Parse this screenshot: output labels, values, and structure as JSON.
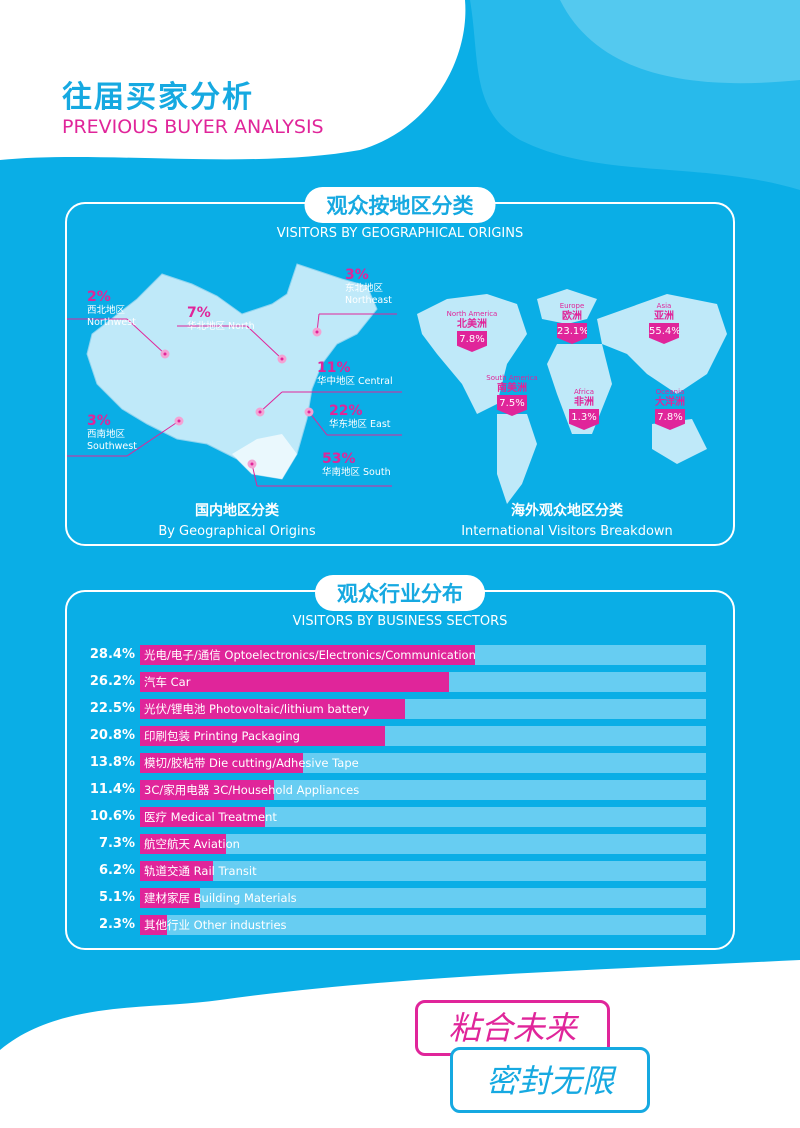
{
  "header": {
    "title_cn": "往届买家分析",
    "title_en": "PREVIOUS BUYER ANALYSIS"
  },
  "geo": {
    "heading": "观众按地区分类",
    "subheading": "VISITORS BY GEOGRAPHICAL ORIGINS",
    "domestic": {
      "caption_cn": "国内地区分类",
      "caption_en": "By Geographical Origins",
      "regions": [
        {
          "pct": "2%",
          "cn": "西北地区",
          "en": "Northwest"
        },
        {
          "pct": "7%",
          "cn": "华北地区 North",
          "en": ""
        },
        {
          "pct": "3%",
          "cn": "东北地区",
          "en": "Northeast"
        },
        {
          "pct": "11%",
          "cn": "华中地区 Central",
          "en": ""
        },
        {
          "pct": "22%",
          "cn": "华东地区 East",
          "en": ""
        },
        {
          "pct": "3%",
          "cn": "西南地区",
          "en": "Southwest"
        },
        {
          "pct": "53%",
          "cn": "华南地区 South",
          "en": ""
        }
      ]
    },
    "international": {
      "caption_cn": "海外观众地区分类",
      "caption_en": "International Visitors Breakdown",
      "regions": [
        {
          "en": "North America",
          "cn": "北美洲",
          "pct": "7.8%"
        },
        {
          "en": "Europe",
          "cn": "欧洲",
          "pct": "23.1%"
        },
        {
          "en": "Asia",
          "cn": "亚洲",
          "pct": "55.4%"
        },
        {
          "en": "South America",
          "cn": "南美洲",
          "pct": "7.5%"
        },
        {
          "en": "Africa",
          "cn": "非洲",
          "pct": "1.3%"
        },
        {
          "en": "Oceania",
          "cn": "大洋洲",
          "pct": "7.8%"
        }
      ]
    }
  },
  "sectors": {
    "heading": "观众行业分布",
    "subheading": "VISITORS BY BUSINESS SECTORS"
  },
  "chart_data": {
    "type": "bar",
    "orientation": "horizontal",
    "categories": [
      "光电/电子/通信 Optoelectronics/Electronics/Communication",
      "汽车 Car",
      "光伏/锂电池 Photovoltaic/lithium battery",
      "印刷包装 Printing  Packaging",
      "模切/胶粘带 Die cutting/Adhesive Tape",
      "3C/家用电器 3C/Household Appliances",
      "医疗 Medical Treatment",
      "航空航天 Aviation",
      "轨道交通 Rail Transit",
      "建材家居 Building Materials",
      "其他行业 Other industries"
    ],
    "values": [
      28.4,
      26.2,
      22.5,
      20.8,
      13.8,
      11.4,
      10.6,
      7.3,
      6.2,
      5.1,
      2.3
    ],
    "labels": [
      "28.4%",
      "26.2%",
      "22.5%",
      "20.8%",
      "13.8%",
      "11.4%",
      "10.6%",
      "7.3%",
      "6.2%",
      "5.1%",
      "2.3%"
    ],
    "colors": {
      "fill": "#e0259a",
      "track": "#67cdf2"
    }
  },
  "slogan": {
    "line1": "粘合未来",
    "line2": "密封无限"
  },
  "colors": {
    "background": "#0aaee6",
    "accent": "#e0259a",
    "title": "#16a9e1"
  }
}
